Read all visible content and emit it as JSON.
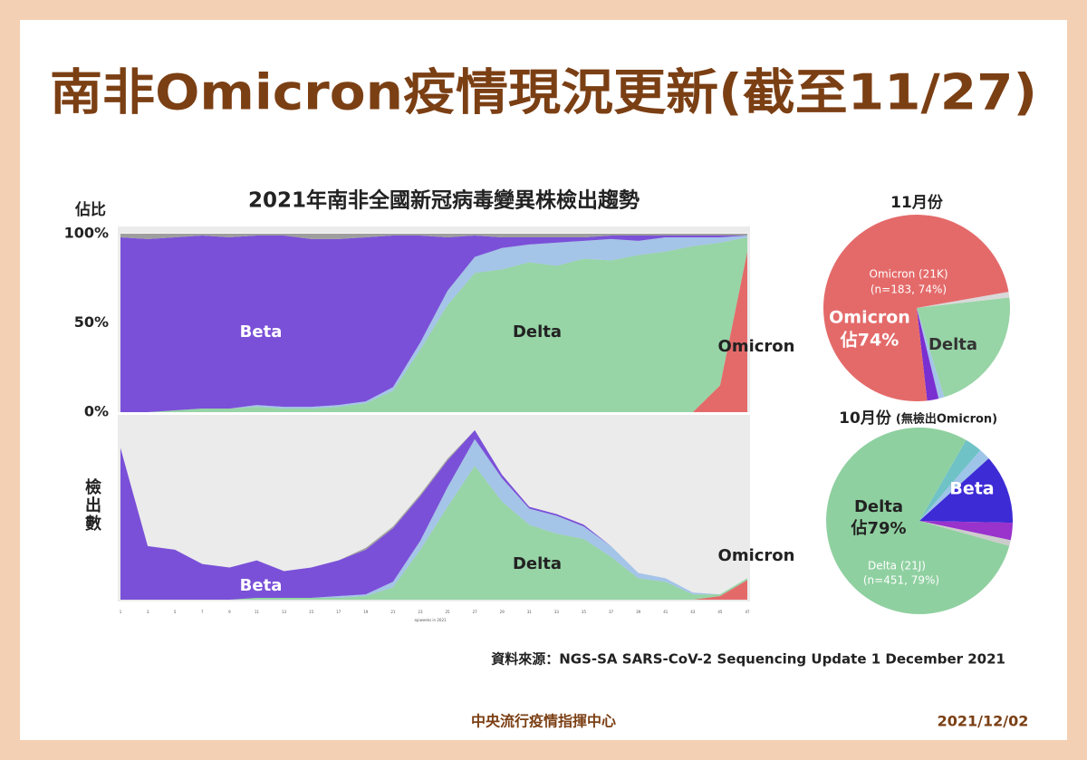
{
  "title": "南非Omicron疫情現況更新(截至11/27)",
  "source": "資料來源：NGS-SA SARS-CoV-2 Sequencing Update 1 December 2021",
  "footer": "中央流行疫情指揮中心",
  "date": "2021/12/02",
  "chart_data": [
    {
      "type": "area",
      "title": "2021年南非全國新冠病毒變異株檢出趨勢",
      "y_label": "佔比",
      "x": [
        1,
        3,
        5,
        7,
        9,
        11,
        13,
        15,
        17,
        19,
        21,
        23,
        25,
        27,
        29,
        31,
        33,
        35,
        37,
        39,
        41,
        43,
        45,
        47
      ],
      "xlim": [
        1,
        47
      ],
      "ylim": [
        0,
        100
      ],
      "yticks": [
        {
          "value": 0,
          "label": "0%"
        },
        {
          "value": 50,
          "label": "50%"
        },
        {
          "value": 100,
          "label": "100%"
        }
      ],
      "grid": true,
      "series": [
        {
          "name": "Omicron",
          "color": "#e46a6a",
          "values": [
            0,
            0,
            0,
            0,
            0,
            0,
            0,
            0,
            0,
            0,
            0,
            0,
            0,
            0,
            0,
            0,
            0,
            0,
            0,
            0,
            0,
            0,
            15,
            90
          ]
        },
        {
          "name": "Delta",
          "color": "#97d4a6",
          "values": [
            0,
            0,
            1,
            2,
            2,
            3,
            2,
            2,
            3,
            5,
            12,
            35,
            60,
            78,
            80,
            84,
            82,
            86,
            85,
            88,
            90,
            93,
            80,
            8
          ]
        },
        {
          "color": "#a4c4e8",
          "values": [
            0,
            0,
            0,
            0,
            0,
            1,
            1,
            1,
            1,
            1,
            2,
            4,
            8,
            9,
            12,
            10,
            13,
            10,
            12,
            8,
            8,
            5,
            3,
            1
          ]
        },
        {
          "name": "Beta",
          "color": "#7a50d8",
          "values": [
            98,
            97,
            97,
            97,
            96,
            95,
            96,
            94,
            93,
            92,
            85,
            60,
            30,
            12,
            6,
            4,
            3,
            2,
            2,
            3,
            1,
            1,
            1,
            0
          ]
        },
        {
          "color": "#9e9e9e",
          "values": [
            2,
            3,
            2,
            1,
            2,
            1,
            1,
            3,
            3,
            2,
            1,
            1,
            2,
            1,
            2,
            2,
            2,
            2,
            1,
            1,
            1,
            1,
            1,
            1
          ]
        }
      ]
    },
    {
      "type": "area",
      "y_label": "檢出數",
      "x_label": "epiweeks in 2021",
      "x": [
        1,
        3,
        5,
        7,
        9,
        11,
        13,
        15,
        17,
        19,
        21,
        23,
        25,
        27,
        29,
        31,
        33,
        35,
        37,
        39,
        41,
        43,
        45,
        47
      ],
      "xlim": [
        1,
        47
      ],
      "ylim": [
        0,
        100
      ],
      "series": [
        {
          "name": "Omicron",
          "color": "#e46a6a",
          "values": [
            0,
            0,
            0,
            0,
            0,
            0,
            0,
            0,
            0,
            0,
            0,
            0,
            0,
            0,
            0,
            0,
            0,
            0,
            0,
            0,
            0,
            0,
            2,
            11
          ]
        },
        {
          "name": "Delta",
          "color": "#97d4a6",
          "values": [
            0,
            0,
            0,
            0,
            0,
            1,
            1,
            1,
            1,
            2,
            7,
            28,
            52,
            75,
            55,
            42,
            37,
            34,
            24,
            12,
            10,
            3,
            1,
            1
          ]
        },
        {
          "color": "#a4c4e8",
          "values": [
            0,
            0,
            0,
            0,
            0,
            0,
            0,
            0,
            1,
            1,
            3,
            5,
            11,
            15,
            13,
            9,
            10,
            7,
            6,
            3,
            2,
            1,
            0,
            0
          ]
        },
        {
          "name": "Beta",
          "color": "#7a50d8",
          "values": [
            85,
            30,
            28,
            20,
            18,
            21,
            15,
            17,
            20,
            25,
            30,
            25,
            15,
            5,
            2,
            1,
            1,
            1,
            0,
            0,
            0,
            0,
            0,
            0
          ]
        },
        {
          "color": "#9e9e9e",
          "values": [
            0,
            0,
            0,
            0,
            0,
            0,
            0,
            0,
            0,
            1,
            1,
            1,
            1,
            0,
            0,
            0,
            0,
            0,
            0,
            0,
            0,
            0,
            0,
            0
          ]
        }
      ]
    },
    {
      "type": "pie",
      "title": "11月份",
      "values": [
        1,
        22,
        1,
        2,
        74
      ],
      "colors": [
        "#d9d9d9",
        "#97d4a6",
        "#a4c4e8",
        "#7a2fd0",
        "#e46a6a"
      ],
      "labels": [
        null,
        "Delta",
        null,
        null,
        "Omicron"
      ],
      "value_labels": [
        null,
        null,
        null,
        null,
        "佔74%"
      ],
      "annotation": [
        "Omicron (21K)",
        "(n=183, 74%)"
      ]
    },
    {
      "type": "pie",
      "title": "10月份",
      "subtitle": "(無檢出Omicron)",
      "values": [
        3,
        2,
        12,
        3,
        1,
        79
      ],
      "colors": [
        "#6fc2c6",
        "#9ec4e8",
        "#3d2bd6",
        "#9933cc",
        "#cccccc",
        "#8fd0a0"
      ],
      "labels": [
        null,
        null,
        "Beta",
        null,
        null,
        "Delta"
      ],
      "value_labels": [
        null,
        null,
        null,
        null,
        null,
        "佔79%"
      ],
      "annotation": [
        "Delta (21J)",
        "(n=451, 79%)"
      ]
    }
  ]
}
